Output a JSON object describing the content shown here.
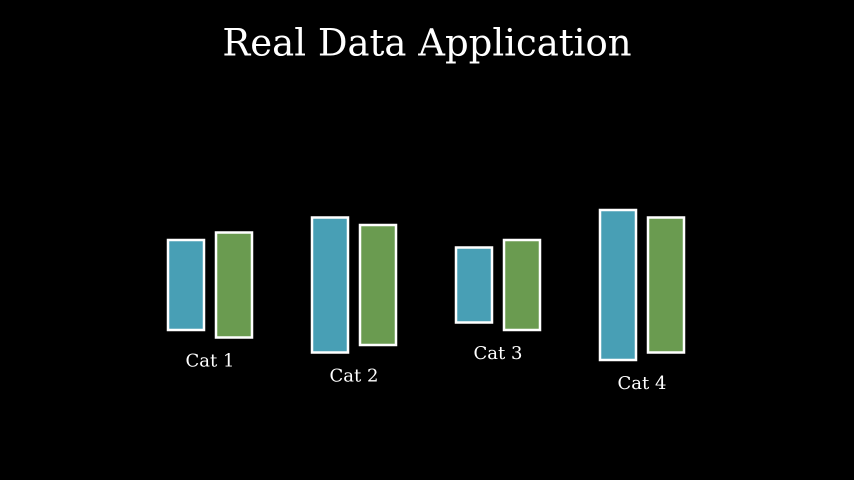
{
  "chart_data": {
    "type": "bar",
    "title": "Real Data Application",
    "categories": [
      "Cat 1",
      "Cat 2",
      "Cat 3",
      "Cat 4"
    ],
    "series": [
      {
        "color": "#489fb5",
        "values": [
          6,
          9,
          5,
          10
        ]
      },
      {
        "color": "#6a9b50",
        "values": [
          7,
          8,
          6,
          9
        ]
      }
    ]
  }
}
